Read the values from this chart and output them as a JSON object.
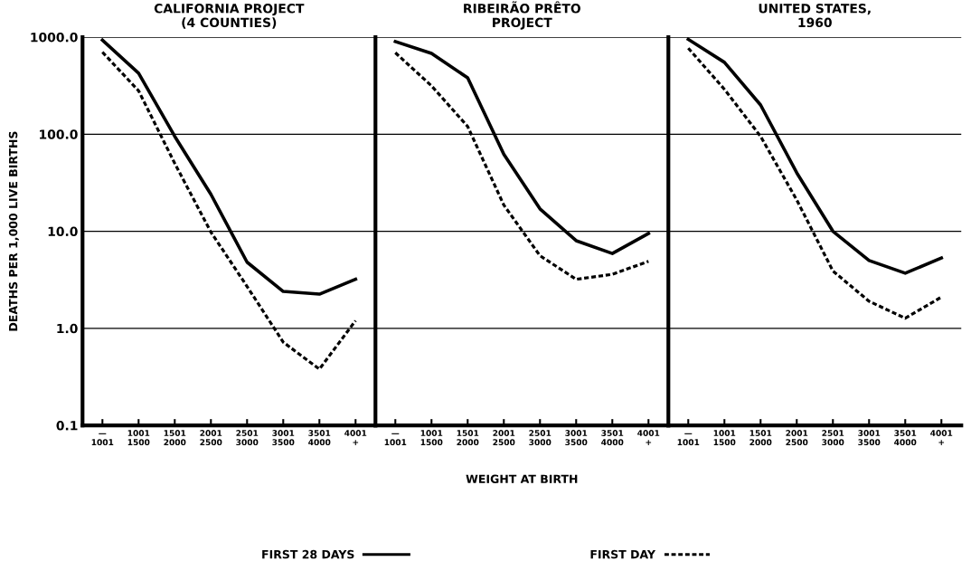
{
  "chart_data": [
    {
      "type": "line",
      "title": "CALIFORNIA PROJECT\n(4 COUNTIES)",
      "ylabel": "DEATHS PER 1,000 LIVE BIRTHS",
      "log": true,
      "grid": "y",
      "legend": "bottom",
      "categories": [
        "—\n1001",
        "1001\n1500",
        "1501\n2000",
        "2001\n2500",
        "2501\n3000",
        "3001\n3500",
        "3501\n4000",
        "4001\n+"
      ],
      "ylim": [
        0.1,
        1000
      ],
      "yticks": [
        {
          "value": 0.1,
          "label": "0.1"
        },
        {
          "value": 1,
          "label": "1.0"
        },
        {
          "value": 10,
          "label": "10.0"
        },
        {
          "value": 100,
          "label": "100.0"
        },
        {
          "value": 1000,
          "label": "1000.0"
        }
      ],
      "series": [
        {
          "name": "FIRST 28 DAYS",
          "color": "#000000",
          "line_style": "solid",
          "values": [
            930,
            425,
            95,
            24,
            4.8,
            2.4,
            2.25,
            3.2
          ]
        },
        {
          "name": "FIRST DAY",
          "color": "#000000",
          "line_style": "dotted",
          "values": [
            700,
            280,
            50,
            9.8,
            2.7,
            0.72,
            0.38,
            1.2
          ]
        }
      ]
    },
    {
      "type": "line",
      "title": "RIBEIRÃO PRÊTO\nPROJECT",
      "xlabel": "WEIGHT AT BIRTH",
      "log": true,
      "grid": "y",
      "tick_labels": "x",
      "categories": [
        "—\n1001",
        "1001\n1500",
        "1501\n2000",
        "2001\n2500",
        "2501\n3000",
        "3001\n3500",
        "3501\n4000",
        "4001\n+"
      ],
      "ylim": [
        0.1,
        1000
      ],
      "series": [
        {
          "color": "#000000",
          "line_style": "solid",
          "values": [
            900,
            680,
            380,
            62,
            17,
            8,
            5.9,
            9.5
          ]
        },
        {
          "color": "#000000",
          "line_style": "dotted",
          "values": [
            690,
            315,
            120,
            18.6,
            5.6,
            3.2,
            3.6,
            4.9
          ]
        }
      ]
    },
    {
      "type": "line",
      "title": "UNITED STATES,\n1960",
      "log": true,
      "grid": "y",
      "tick_labels": "x",
      "categories": [
        "—\n1001",
        "1001\n1500",
        "1501\n2000",
        "2001\n2500",
        "2501\n3000",
        "3001\n3500",
        "3501\n4000",
        "4001\n+"
      ],
      "ylim": [
        0.1,
        1000
      ],
      "series": [
        {
          "color": "#000000",
          "line_style": "solid",
          "values": [
            950,
            550,
            200,
            40,
            10,
            5,
            3.7,
            5.3
          ]
        },
        {
          "color": "#000000",
          "line_style": "dotted",
          "values": [
            770,
            290,
            95,
            21,
            3.9,
            1.9,
            1.27,
            2.1
          ]
        }
      ]
    }
  ]
}
